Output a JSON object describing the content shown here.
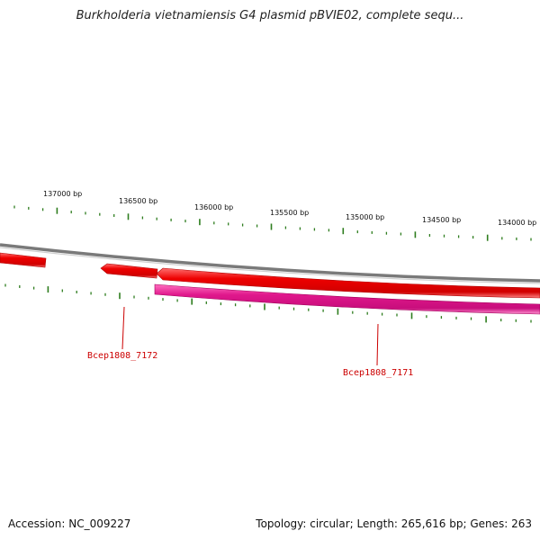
{
  "title": "Burkholderia vietnamiensis G4 plasmid pBVIE02, complete sequ...",
  "footer": {
    "accession": "Accession: NC_009227",
    "stats": "Topology: circular; Length: 265,616 bp; Genes: 263"
  },
  "ticks": [
    {
      "label": "137000 bp"
    },
    {
      "label": "136500 bp"
    },
    {
      "label": "136000 bp"
    },
    {
      "label": "135500 bp"
    },
    {
      "label": "135000 bp"
    },
    {
      "label": "134500 bp"
    },
    {
      "label": "134000 bp"
    }
  ],
  "genes": [
    {
      "label": "Bcep1808_7172"
    },
    {
      "label": "Bcep1808_7171"
    }
  ],
  "colors": {
    "backbone": "#808080",
    "forward_gene": "#ee0000",
    "reverse_gene": "#e0188c",
    "tick": "#2e7d1e",
    "gene_label": "#cc0000"
  }
}
